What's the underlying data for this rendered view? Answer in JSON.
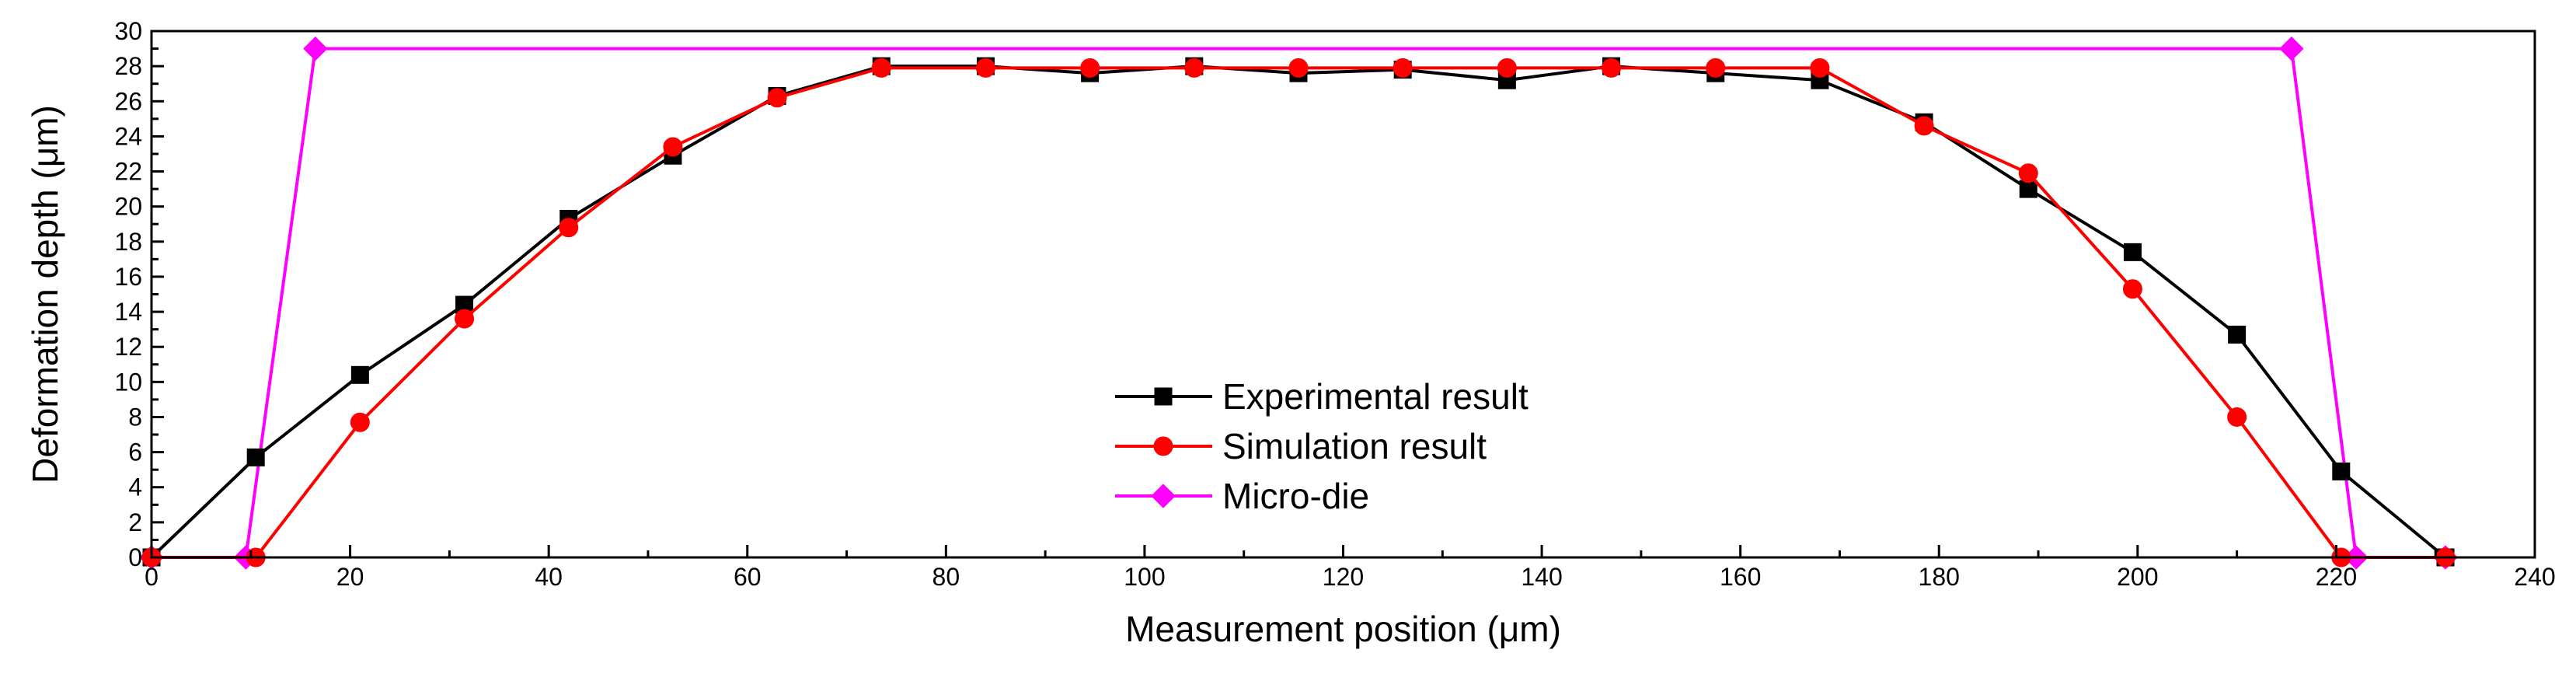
{
  "chart_data": {
    "type": "line",
    "title": "",
    "xlabel": "Measurement position (μm)",
    "ylabel": "Deformation depth (μm)",
    "xlim": [
      0,
      240
    ],
    "ylim": [
      0,
      30
    ],
    "xticks": [
      0,
      20,
      40,
      60,
      80,
      100,
      120,
      140,
      160,
      180,
      200,
      220,
      240
    ],
    "yticks": [
      0,
      2,
      4,
      6,
      8,
      10,
      12,
      14,
      16,
      18,
      20,
      22,
      24,
      26,
      28,
      30
    ],
    "grid": false,
    "legend_position": "center",
    "series": [
      {
        "name": "Experimental result",
        "color": "#000000",
        "marker": "square",
        "x": [
          0,
          10.5,
          21,
          31.5,
          42,
          52.5,
          63,
          73.5,
          84,
          94.5,
          105,
          115.5,
          126,
          136.5,
          147,
          157.5,
          168,
          178.5,
          189,
          199.5,
          210,
          220.5,
          231
        ],
        "y": [
          0,
          5.7,
          10.4,
          14.4,
          19.3,
          22.9,
          26.3,
          28.0,
          28.0,
          27.6,
          28.0,
          27.6,
          27.8,
          27.2,
          28.0,
          27.6,
          27.2,
          24.8,
          21.0,
          17.4,
          12.7,
          4.9,
          0
        ]
      },
      {
        "name": "Simulation result",
        "color": "#ff0000",
        "marker": "circle",
        "x": [
          0,
          10.5,
          21,
          31.5,
          42,
          52.5,
          63,
          73.5,
          84,
          94.5,
          105,
          115.5,
          126,
          136.5,
          147,
          157.5,
          168,
          178.5,
          189,
          199.5,
          210,
          220.5,
          231
        ],
        "y": [
          0,
          0,
          7.7,
          13.6,
          18.8,
          23.4,
          26.2,
          27.9,
          27.9,
          27.9,
          27.9,
          27.9,
          27.9,
          27.9,
          27.9,
          27.9,
          27.9,
          24.6,
          21.9,
          15.3,
          8.0,
          0,
          0
        ]
      },
      {
        "name": "Micro-die",
        "color": "#ff00ff",
        "marker": "diamond",
        "x": [
          0,
          9.5,
          16.5,
          215.5,
          222,
          231
        ],
        "y": [
          0,
          0,
          29,
          29,
          0,
          0
        ]
      }
    ]
  }
}
